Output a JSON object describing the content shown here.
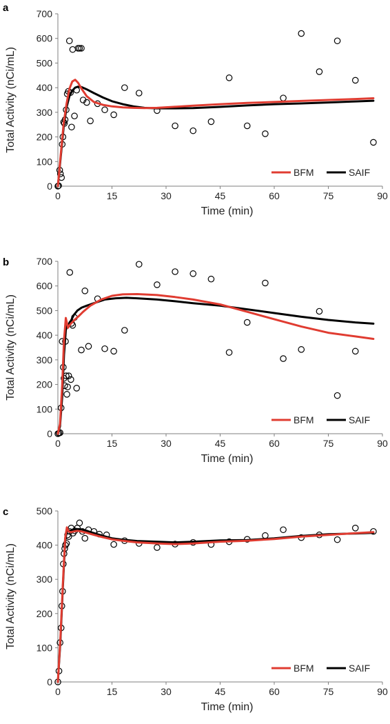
{
  "chart_data": [
    {
      "panel": "a",
      "type": "scatter",
      "xlabel": "Time (min)",
      "ylabel": "Total Activity (nCi/mL)",
      "xlim": [
        0,
        90
      ],
      "ylim": [
        0,
        700
      ],
      "xticks": [
        0,
        15,
        30,
        45,
        60,
        75,
        90
      ],
      "yticks": [
        0,
        100,
        200,
        300,
        400,
        500,
        600,
        700
      ],
      "grid": false,
      "legend": "bottom-right",
      "points": [
        [
          0,
          0
        ],
        [
          0.2,
          2
        ],
        [
          0.5,
          65
        ],
        [
          0.7,
          50
        ],
        [
          1.0,
          35
        ],
        [
          1.2,
          170
        ],
        [
          1.4,
          200
        ],
        [
          1.6,
          260
        ],
        [
          1.8,
          255
        ],
        [
          2.0,
          270
        ],
        [
          2.3,
          310
        ],
        [
          2.6,
          375
        ],
        [
          2.9,
          385
        ],
        [
          3.2,
          590
        ],
        [
          3.5,
          380
        ],
        [
          3.8,
          240
        ],
        [
          4.1,
          555
        ],
        [
          4.6,
          285
        ],
        [
          5.2,
          390
        ],
        [
          5.6,
          560
        ],
        [
          6.0,
          560
        ],
        [
          6.5,
          560
        ],
        [
          7.0,
          350
        ],
        [
          8.0,
          340
        ],
        [
          9.0,
          265
        ],
        [
          11.0,
          335
        ],
        [
          13.0,
          310
        ],
        [
          15.5,
          290
        ],
        [
          18.5,
          400
        ],
        [
          22.5,
          378
        ],
        [
          27.5,
          307
        ],
        [
          32.5,
          245
        ],
        [
          37.5,
          225
        ],
        [
          42.5,
          262
        ],
        [
          47.5,
          440
        ],
        [
          52.5,
          245
        ],
        [
          57.5,
          213
        ],
        [
          62.5,
          358
        ],
        [
          67.5,
          620
        ],
        [
          72.5,
          465
        ],
        [
          77.5,
          590
        ],
        [
          82.5,
          430
        ],
        [
          87.5,
          178
        ]
      ],
      "series": [
        {
          "name": "BFM",
          "color": "#e03c31",
          "x": [
            0,
            0.8,
            1.6,
            2.4,
            3.2,
            4.0,
            4.8,
            5.6,
            6.6,
            8.0,
            10.0,
            12.5,
            15.0,
            18.0,
            21.0,
            24.0,
            27.5,
            32.0,
            37.5,
            45.0,
            52.5,
            60.0,
            67.5,
            75.0,
            82.5,
            87.5
          ],
          "y": [
            0,
            130,
            255,
            335,
            395,
            425,
            432,
            420,
            395,
            365,
            342,
            330,
            324,
            320,
            318,
            317,
            318,
            322,
            327,
            333,
            338,
            342,
            346,
            350,
            354,
            357
          ]
        },
        {
          "name": "SAIF",
          "color": "#000000",
          "x": [
            0,
            0.8,
            1.6,
            2.4,
            3.2,
            4.0,
            4.8,
            5.6,
            6.6,
            8.0,
            10.0,
            12.5,
            15.0,
            18.0,
            21.0,
            24.0,
            27.5,
            32.0,
            37.5,
            45.0,
            52.5,
            60.0,
            67.5,
            75.0,
            82.5,
            87.5
          ],
          "y": [
            0,
            120,
            240,
            320,
            365,
            388,
            400,
            404,
            402,
            393,
            378,
            360,
            345,
            333,
            324,
            318,
            316,
            316,
            317,
            322,
            328,
            333,
            336,
            340,
            344,
            347
          ]
        }
      ]
    },
    {
      "panel": "b",
      "type": "scatter",
      "xlabel": "Time (min)",
      "ylabel": "Total Activity (nCi/mL)",
      "xlim": [
        0,
        90
      ],
      "ylim": [
        0,
        700
      ],
      "xticks": [
        0,
        15,
        30,
        45,
        60,
        75,
        90
      ],
      "yticks": [
        0,
        100,
        200,
        300,
        400,
        500,
        600,
        700
      ],
      "grid": false,
      "legend": "bottom-right",
      "points": [
        [
          0,
          0
        ],
        [
          0.3,
          2
        ],
        [
          0.6,
          4
        ],
        [
          0.9,
          105
        ],
        [
          1.2,
          375
        ],
        [
          1.5,
          270
        ],
        [
          1.7,
          225
        ],
        [
          1.9,
          195
        ],
        [
          2.1,
          375
        ],
        [
          2.3,
          235
        ],
        [
          2.5,
          160
        ],
        [
          2.7,
          190
        ],
        [
          3.0,
          235
        ],
        [
          3.3,
          655
        ],
        [
          3.6,
          220
        ],
        [
          3.8,
          448
        ],
        [
          4.1,
          440
        ],
        [
          4.6,
          472
        ],
        [
          5.2,
          185
        ],
        [
          6.5,
          340
        ],
        [
          7.5,
          580
        ],
        [
          8.5,
          355
        ],
        [
          11.0,
          548
        ],
        [
          13.0,
          345
        ],
        [
          15.5,
          335
        ],
        [
          18.5,
          420
        ],
        [
          22.5,
          688
        ],
        [
          27.5,
          605
        ],
        [
          32.5,
          658
        ],
        [
          37.5,
          650
        ],
        [
          42.5,
          628
        ],
        [
          47.5,
          330
        ],
        [
          52.5,
          452
        ],
        [
          57.5,
          612
        ],
        [
          62.5,
          305
        ],
        [
          67.5,
          342
        ],
        [
          72.5,
          497
        ],
        [
          77.5,
          155
        ],
        [
          82.5,
          335
        ]
      ],
      "series": [
        {
          "name": "BFM",
          "color": "#e03c31",
          "x": [
            0,
            0.6,
            1.2,
            1.7,
            2.2,
            2.5,
            2.8,
            3.2,
            3.8,
            4.6,
            5.6,
            7.0,
            9.0,
            12.0,
            15.0,
            18.0,
            22.0,
            27.5,
            32.5,
            37.5,
            45.0,
            52.5,
            60.0,
            67.5,
            75.0,
            82.5,
            87.5
          ],
          "y": [
            0,
            40,
            200,
            380,
            470,
            450,
            430,
            440,
            450,
            462,
            475,
            495,
            520,
            545,
            560,
            566,
            567,
            563,
            555,
            545,
            525,
            495,
            465,
            435,
            410,
            395,
            385
          ]
        },
        {
          "name": "SAIF",
          "color": "#000000",
          "x": [
            0,
            0.6,
            1.2,
            1.7,
            2.2,
            2.6,
            3.0,
            3.6,
            4.4,
            5.4,
            6.6,
            8.0,
            10.0,
            13.0,
            16.0,
            19.0,
            22.0,
            27.5,
            32.5,
            37.5,
            45.0,
            52.5,
            60.0,
            67.5,
            75.0,
            82.5,
            87.5
          ],
          "y": [
            0,
            30,
            150,
            320,
            420,
            440,
            445,
            458,
            482,
            500,
            512,
            520,
            530,
            545,
            550,
            552,
            550,
            545,
            538,
            530,
            520,
            505,
            490,
            475,
            462,
            452,
            447
          ]
        }
      ]
    },
    {
      "panel": "c",
      "type": "scatter",
      "xlabel": "Time (min)",
      "ylabel": "Total Activity (nCi/mL)",
      "xlim": [
        0,
        90
      ],
      "ylim": [
        0,
        500
      ],
      "xticks": [
        0,
        15,
        30,
        45,
        60,
        75,
        90
      ],
      "yticks": [
        0,
        100,
        200,
        300,
        400,
        500
      ],
      "grid": false,
      "legend": "bottom-right",
      "points": [
        [
          0,
          0
        ],
        [
          0.3,
          32
        ],
        [
          0.6,
          115
        ],
        [
          0.9,
          158
        ],
        [
          1.1,
          222
        ],
        [
          1.3,
          265
        ],
        [
          1.5,
          345
        ],
        [
          1.7,
          375
        ],
        [
          1.9,
          390
        ],
        [
          2.1,
          400
        ],
        [
          2.4,
          405
        ],
        [
          2.7,
          430
        ],
        [
          3.0,
          425
        ],
        [
          3.3,
          440
        ],
        [
          3.7,
          450
        ],
        [
          4.2,
          435
        ],
        [
          4.7,
          442
        ],
        [
          5.4,
          450
        ],
        [
          6.0,
          465
        ],
        [
          6.8,
          440
        ],
        [
          7.5,
          420
        ],
        [
          8.5,
          445
        ],
        [
          10.0,
          440
        ],
        [
          11.5,
          432
        ],
        [
          13.5,
          430
        ],
        [
          15.5,
          402
        ],
        [
          18.5,
          413
        ],
        [
          22.5,
          405
        ],
        [
          27.5,
          393
        ],
        [
          32.5,
          403
        ],
        [
          37.5,
          408
        ],
        [
          42.5,
          402
        ],
        [
          47.5,
          410
        ],
        [
          52.5,
          417
        ],
        [
          57.5,
          428
        ],
        [
          62.5,
          445
        ],
        [
          67.5,
          422
        ],
        [
          72.5,
          430
        ],
        [
          77.5,
          416
        ],
        [
          82.5,
          450
        ],
        [
          87.5,
          440
        ]
      ],
      "series": [
        {
          "name": "BFM",
          "color": "#e03c31",
          "x": [
            0,
            0.7,
            1.4,
            2.0,
            2.5,
            3.0,
            3.6,
            4.4,
            5.4,
            6.6,
            8.0,
            10.0,
            12.5,
            15.0,
            18.0,
            22.0,
            27.5,
            32.5,
            37.5,
            45.0,
            52.5,
            60.0,
            67.5,
            75.0,
            82.5,
            87.5
          ],
          "y": [
            0,
            130,
            290,
            420,
            452,
            440,
            438,
            440,
            442,
            440,
            436,
            430,
            423,
            417,
            413,
            408,
            405,
            403,
            405,
            410,
            413,
            418,
            425,
            430,
            435,
            438
          ]
        },
        {
          "name": "SAIF",
          "color": "#000000",
          "x": [
            0,
            0.7,
            1.4,
            2.0,
            2.5,
            3.0,
            3.6,
            4.4,
            5.4,
            6.6,
            8.0,
            10.0,
            12.5,
            15.0,
            18.0,
            22.0,
            27.5,
            32.5,
            37.5,
            45.0,
            52.5,
            60.0,
            67.5,
            75.0,
            82.5,
            87.5
          ],
          "y": [
            0,
            120,
            280,
            410,
            445,
            442,
            443,
            445,
            447,
            446,
            442,
            435,
            427,
            420,
            416,
            412,
            410,
            408,
            410,
            414,
            415,
            420,
            427,
            432,
            434,
            436
          ]
        }
      ]
    }
  ]
}
